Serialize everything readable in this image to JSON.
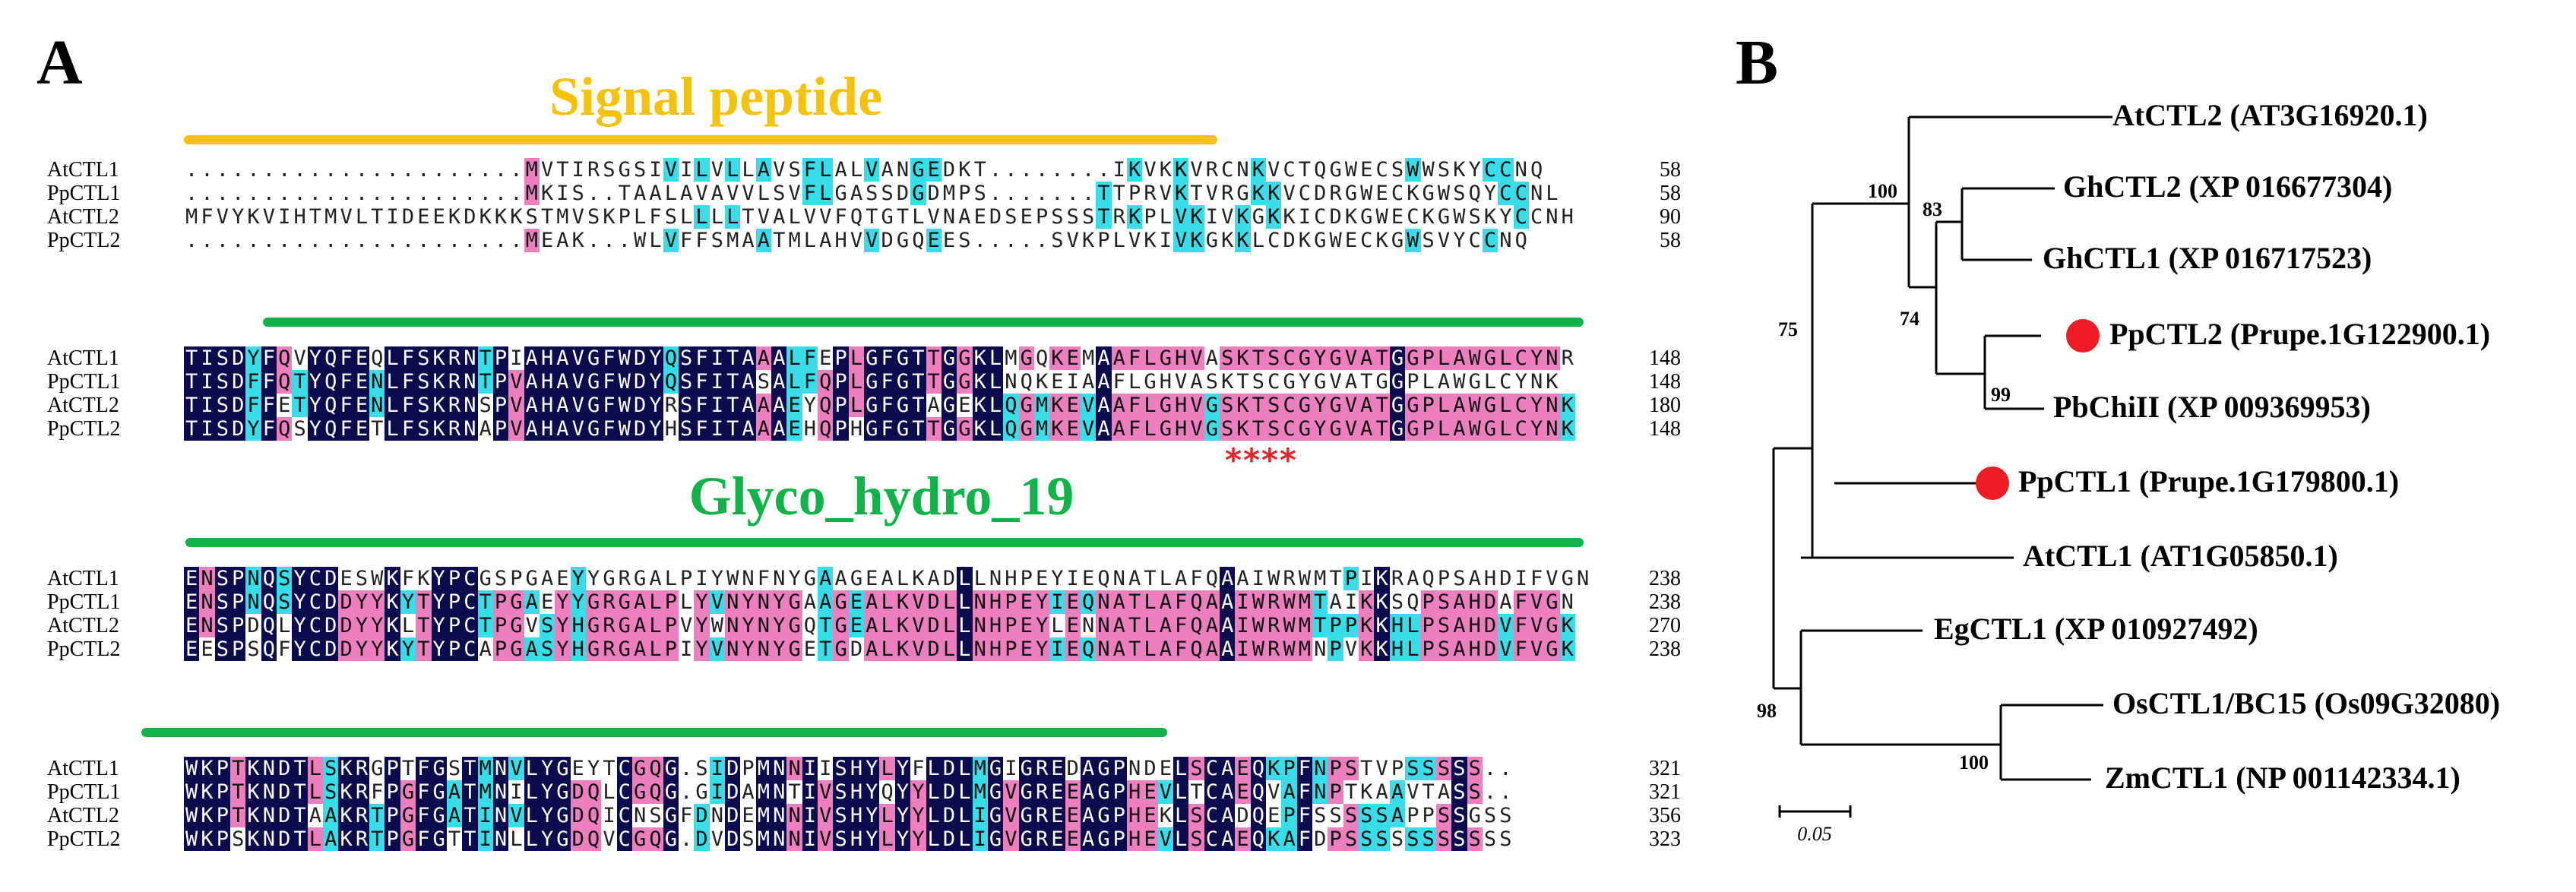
{
  "panel_a_label": "A",
  "panel_b_label": "B",
  "colors": {
    "signal_peptide": "#f4c20d",
    "glyco_domain": "#12b24a",
    "identical": "#0b0b4d",
    "similar_pink": "#ee7fbf",
    "similar_cyan": "#38dde8",
    "marker": "#ee1c25",
    "active_site": "#e3262a"
  },
  "domains": {
    "signal_peptide": "Signal peptide",
    "glyco_hydro": "Glyco_hydro_19"
  },
  "active_site_marker": "****",
  "alignment": {
    "blocks": [
      {
        "rows": [
          {
            "name": "AtCTL1",
            "seq": "......................MVTIRSGSIVILVLLAVSFLALVANGEDKT........IKVKKVRCNKVCTQGWECSWWSKYCCNQ",
            "end": "58"
          },
          {
            "name": "PpCTL1",
            "seq": "......................MKIS..TAALAVAVVLSVFLGASSDGDMPS.......TTPRVKTVRGKKVCDRGWECKGWSQYCCNL",
            "end": "58"
          },
          {
            "name": "AtCTL2",
            "seq": "MFVYKVIHTMVLTIDEEKDKKKSTMVSKPLFSLLLLTVALVVFQTGTLVNAEDSEPSSSTRKPLVKIVKGKKICDKGWECKGWSKYCCNH",
            "end": "90"
          },
          {
            "name": "PpCTL2",
            "seq": "......................MEAK...WLVFFSMAATMLAHVVDGQEES.....SVKPLVKIVKGKKLCDKGWECKGWSVYCCNQ",
            "end": "58"
          }
        ]
      },
      {
        "rows": [
          {
            "name": "AtCTL1",
            "seq": "TISDYFQVYQFEQLFSKRNTPIAHAVGFWDYQSFITAAALFEPLGFGTTGGKLMGQKEMAAFLGHVASKTSCGYGVATGGPLAWGLCYNR",
            "end": "148"
          },
          {
            "name": "PpCTL1",
            "seq": "TISDFFQTYQFENLFSKRNTPVAHAVGFWDYQSFITASALFQPLGFGTTGGKLNQKEIAAFLGHVASKTSCGYGVATGGPLAWGLCYNK",
            "end": "148"
          },
          {
            "name": "AtCTL2",
            "seq": "TISDFFETYQFENLFSKRNSPVAHAVGFWDYRSFITAAAEYQPLGFGTAGEKLQGMKEVAAFLGHVGSKTSCGYGVATGGPLAWGLCYNK",
            "end": "180"
          },
          {
            "name": "PpCTL2",
            "seq": "TISDYFQSYQFETLFSKRNAPVAHAVGFWDYHSFITAAAEHQPHGFGTTGGKLQGMKEVAAFLGHVGSKTSCGYGVATGGPLAWGLCYNK",
            "end": "148"
          }
        ]
      },
      {
        "rows": [
          {
            "name": "AtCTL1",
            "seq": "ENSPNQSYCDESWKFKYPCGSPGAEYYGRGALPIYWNFNYGAAGEALKADLLNHPEYIEQNATLAFQAAIWRWMTPIKRAQPSAHDIFVGN",
            "end": "238"
          },
          {
            "name": "PpCTL1",
            "seq": "ENSPNQSYCDDYYKYTYPCTPGAEYYGRGALPLYVNYNYGAAGEALKVDLLNHPEYIEQNATLAFQAAIWRWMTAIKKSQPSAHDAFVGN",
            "end": "238"
          },
          {
            "name": "AtCTL2",
            "seq": "ENSPDQLYCDDYYKLTYPCTPGVSYHGRGALPVYWNYNYGQTGEALKVDLLNHPEYLENNATLAFQAAIWRWMTPPKKHLPSAHDVFVGK",
            "end": "270"
          },
          {
            "name": "PpCTL2",
            "seq": "EESPSQFYCDDYYKYTYPCAPGASYHGRGALPIYVNYNYGETGDALKVDLLNHPEYIEQNATLAFQAAIWRWMNPVKKHLPSAHDVFVGK",
            "end": "238"
          }
        ]
      },
      {
        "rows": [
          {
            "name": "AtCTL1",
            "seq": "WKPTKNDTLSKRGPTFGSTMNVLYGEYTCGQG.SIDPMNNIISHYLYFLDLMGIGREDAGPNDELSCAEQKPFNPSTVPSSSSS..",
            "end": "321"
          },
          {
            "name": "PpCTL1",
            "seq": "WKPTKNDTLSKRFPGFGATMNILYGDQLCGQG.GIDAMNTIVSHYQYYLDLMGVGREEAGPHEVLTCAEQVAFNPTKAAVTASS..",
            "end": "321"
          },
          {
            "name": "AtCTL2",
            "seq": "WKPTKNDTAAKRTPGFGATINVLYGDQICNSGFDNDEMNNIVSHYLYYLDLIGVGREEAGPHEKLSCADQEPFSSSSSAPPSSGSS",
            "end": "356"
          },
          {
            "name": "PpCTL2",
            "seq": "WKPSKNDTLAKRTPGFGTTINLLYGDQVCGQG.DVDSMNNIVSHYLYYLDLIGVGREEAGPHEVLSCAEQKAFDPSSSSSSSSSSS",
            "end": "323"
          }
        ]
      }
    ]
  },
  "tree": {
    "leaves": [
      {
        "label": "AtCTL2 (AT3G16920.1)",
        "marked": false
      },
      {
        "label": "GhCTL2 (XP 016677304)",
        "marked": false
      },
      {
        "label": "GhCTL1 (XP 016717523)",
        "marked": false
      },
      {
        "label": "PpCTL2 (Prupe.1G122900.1)",
        "marked": true
      },
      {
        "label": "PbChiII (XP 009369953)",
        "marked": false
      },
      {
        "label": "PpCTL1 (Prupe.1G179800.1)",
        "marked": true
      },
      {
        "label": "AtCTL1 (AT1G05850.1)",
        "marked": false
      },
      {
        "label": "EgCTL1 (XP 010927492)",
        "marked": false
      },
      {
        "label": "OsCTL1/BC15 (Os09G32080)",
        "marked": false
      },
      {
        "label": "ZmCTL1 (NP 001142334.1)",
        "marked": false
      }
    ],
    "bootstrap": [
      "100",
      "83",
      "74",
      "99",
      "75",
      "98",
      "100"
    ],
    "scale_label": "0.05"
  }
}
